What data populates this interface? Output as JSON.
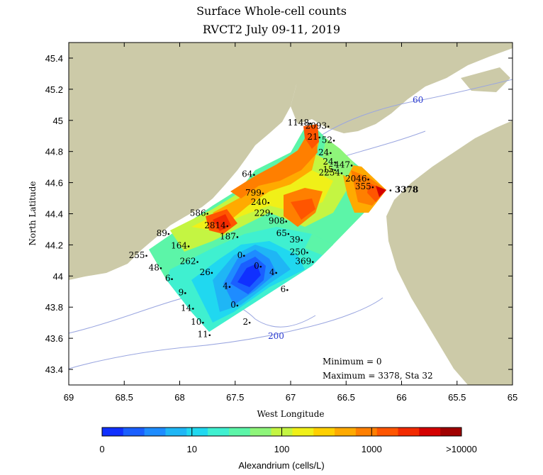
{
  "title_line1": "Surface Whole-cell counts",
  "title_line2": "RVCT2 July 09-11, 2019",
  "axes": {
    "xlabel": "West Longitude",
    "ylabel": "North Latitude",
    "x_ticks": [
      "69",
      "68.5",
      "68",
      "67.5",
      "67",
      "66.5",
      "66",
      "65.5",
      "65"
    ],
    "y_ticks": [
      "45.4",
      "45.2",
      "45",
      "44.8",
      "44.6",
      "44.4",
      "44.2",
      "44",
      "43.8",
      "43.6",
      "43.4"
    ],
    "xlim": [
      69,
      65
    ],
    "ylim": [
      43.3,
      45.5
    ]
  },
  "contour_labels": [
    "60",
    "200"
  ],
  "stats": {
    "minimum": "Minimum = 0",
    "maximum": "Maximum = 3378, Sta 32"
  },
  "colorbar": {
    "label": "Alexandrium (cells/L)",
    "tick_labels": [
      "0",
      "10",
      "100",
      "1000",
      ">10000"
    ],
    "colors": [
      "#1030ff",
      "#1a5fff",
      "#1e8cff",
      "#1fb6f5",
      "#20d8f0",
      "#3ff0d0",
      "#5cf5a8",
      "#8ef57a",
      "#c4f542",
      "#f0f018",
      "#ffd000",
      "#ffaa00",
      "#ff7f00",
      "#ff5500",
      "#f22a00",
      "#d40000",
      "#a00000"
    ]
  },
  "colors": {
    "land": "#cccaa8",
    "water": "#ffffff",
    "contour": "#9aa6e0",
    "grid_dots": "#000000"
  },
  "chart_data": {
    "type": "scatter",
    "title": "Surface Whole-cell counts",
    "subtitle": "RVCT2 July 09-11, 2019",
    "xlabel": "West Longitude",
    "ylabel": "North Latitude",
    "xlim": [
      69,
      65
    ],
    "ylim": [
      43.3,
      45.5
    ],
    "units": "Alexandrium (cells/L)",
    "stations": [
      {
        "lon": 66.82,
        "lat": 44.98,
        "label": "1148"
      },
      {
        "lon": 66.66,
        "lat": 44.96,
        "label": "2093"
      },
      {
        "lon": 66.74,
        "lat": 44.89,
        "label": "21"
      },
      {
        "lon": 66.61,
        "lat": 44.87,
        "label": "52"
      },
      {
        "lon": 66.64,
        "lat": 44.79,
        "label": "24"
      },
      {
        "lon": 66.6,
        "lat": 44.73,
        "label": "24"
      },
      {
        "lon": 66.45,
        "lat": 44.71,
        "label": "447"
      },
      {
        "lon": 66.6,
        "lat": 44.68,
        "label": "15"
      },
      {
        "lon": 66.54,
        "lat": 44.66,
        "label": "2254"
      },
      {
        "lon": 66.3,
        "lat": 44.62,
        "label": "2046"
      },
      {
        "lon": 66.26,
        "lat": 44.57,
        "label": "355"
      },
      {
        "lon": 66.1,
        "lat": 44.55,
        "label": "3378"
      },
      {
        "lon": 67.33,
        "lat": 44.65,
        "label": "64"
      },
      {
        "lon": 67.25,
        "lat": 44.53,
        "label": "799"
      },
      {
        "lon": 67.2,
        "lat": 44.47,
        "label": "240"
      },
      {
        "lon": 67.17,
        "lat": 44.4,
        "label": "229"
      },
      {
        "lon": 67.04,
        "lat": 44.35,
        "label": "908"
      },
      {
        "lon": 67.02,
        "lat": 44.27,
        "label": "65"
      },
      {
        "lon": 66.9,
        "lat": 44.23,
        "label": "39"
      },
      {
        "lon": 66.85,
        "lat": 44.15,
        "label": "250"
      },
      {
        "lon": 66.8,
        "lat": 44.09,
        "label": "369"
      },
      {
        "lon": 67.75,
        "lat": 44.4,
        "label": "586"
      },
      {
        "lon": 67.57,
        "lat": 44.32,
        "label": "2814"
      },
      {
        "lon": 67.48,
        "lat": 44.25,
        "label": "187"
      },
      {
        "lon": 68.1,
        "lat": 44.27,
        "label": "89"
      },
      {
        "lon": 67.92,
        "lat": 44.19,
        "label": "164"
      },
      {
        "lon": 67.84,
        "lat": 44.09,
        "label": "262"
      },
      {
        "lon": 67.71,
        "lat": 44.02,
        "label": "26"
      },
      {
        "lon": 68.3,
        "lat": 44.13,
        "label": "255"
      },
      {
        "lon": 68.17,
        "lat": 44.05,
        "label": "48"
      },
      {
        "lon": 68.07,
        "lat": 43.98,
        "label": "6"
      },
      {
        "lon": 67.95,
        "lat": 43.89,
        "label": "9"
      },
      {
        "lon": 67.88,
        "lat": 43.79,
        "label": "14"
      },
      {
        "lon": 67.79,
        "lat": 43.7,
        "label": "10"
      },
      {
        "lon": 67.73,
        "lat": 43.62,
        "label": "11"
      },
      {
        "lon": 67.42,
        "lat": 44.13,
        "label": "0"
      },
      {
        "lon": 67.27,
        "lat": 44.06,
        "label": "0"
      },
      {
        "lon": 67.13,
        "lat": 44.02,
        "label": "4"
      },
      {
        "lon": 67.03,
        "lat": 43.91,
        "label": "6"
      },
      {
        "lon": 67.55,
        "lat": 43.93,
        "label": "4"
      },
      {
        "lon": 67.48,
        "lat": 43.81,
        "label": "0"
      },
      {
        "lon": 67.37,
        "lat": 43.7,
        "label": "2"
      }
    ],
    "minimum": 0,
    "maximum": 3378,
    "maximum_station": "Sta 32"
  }
}
